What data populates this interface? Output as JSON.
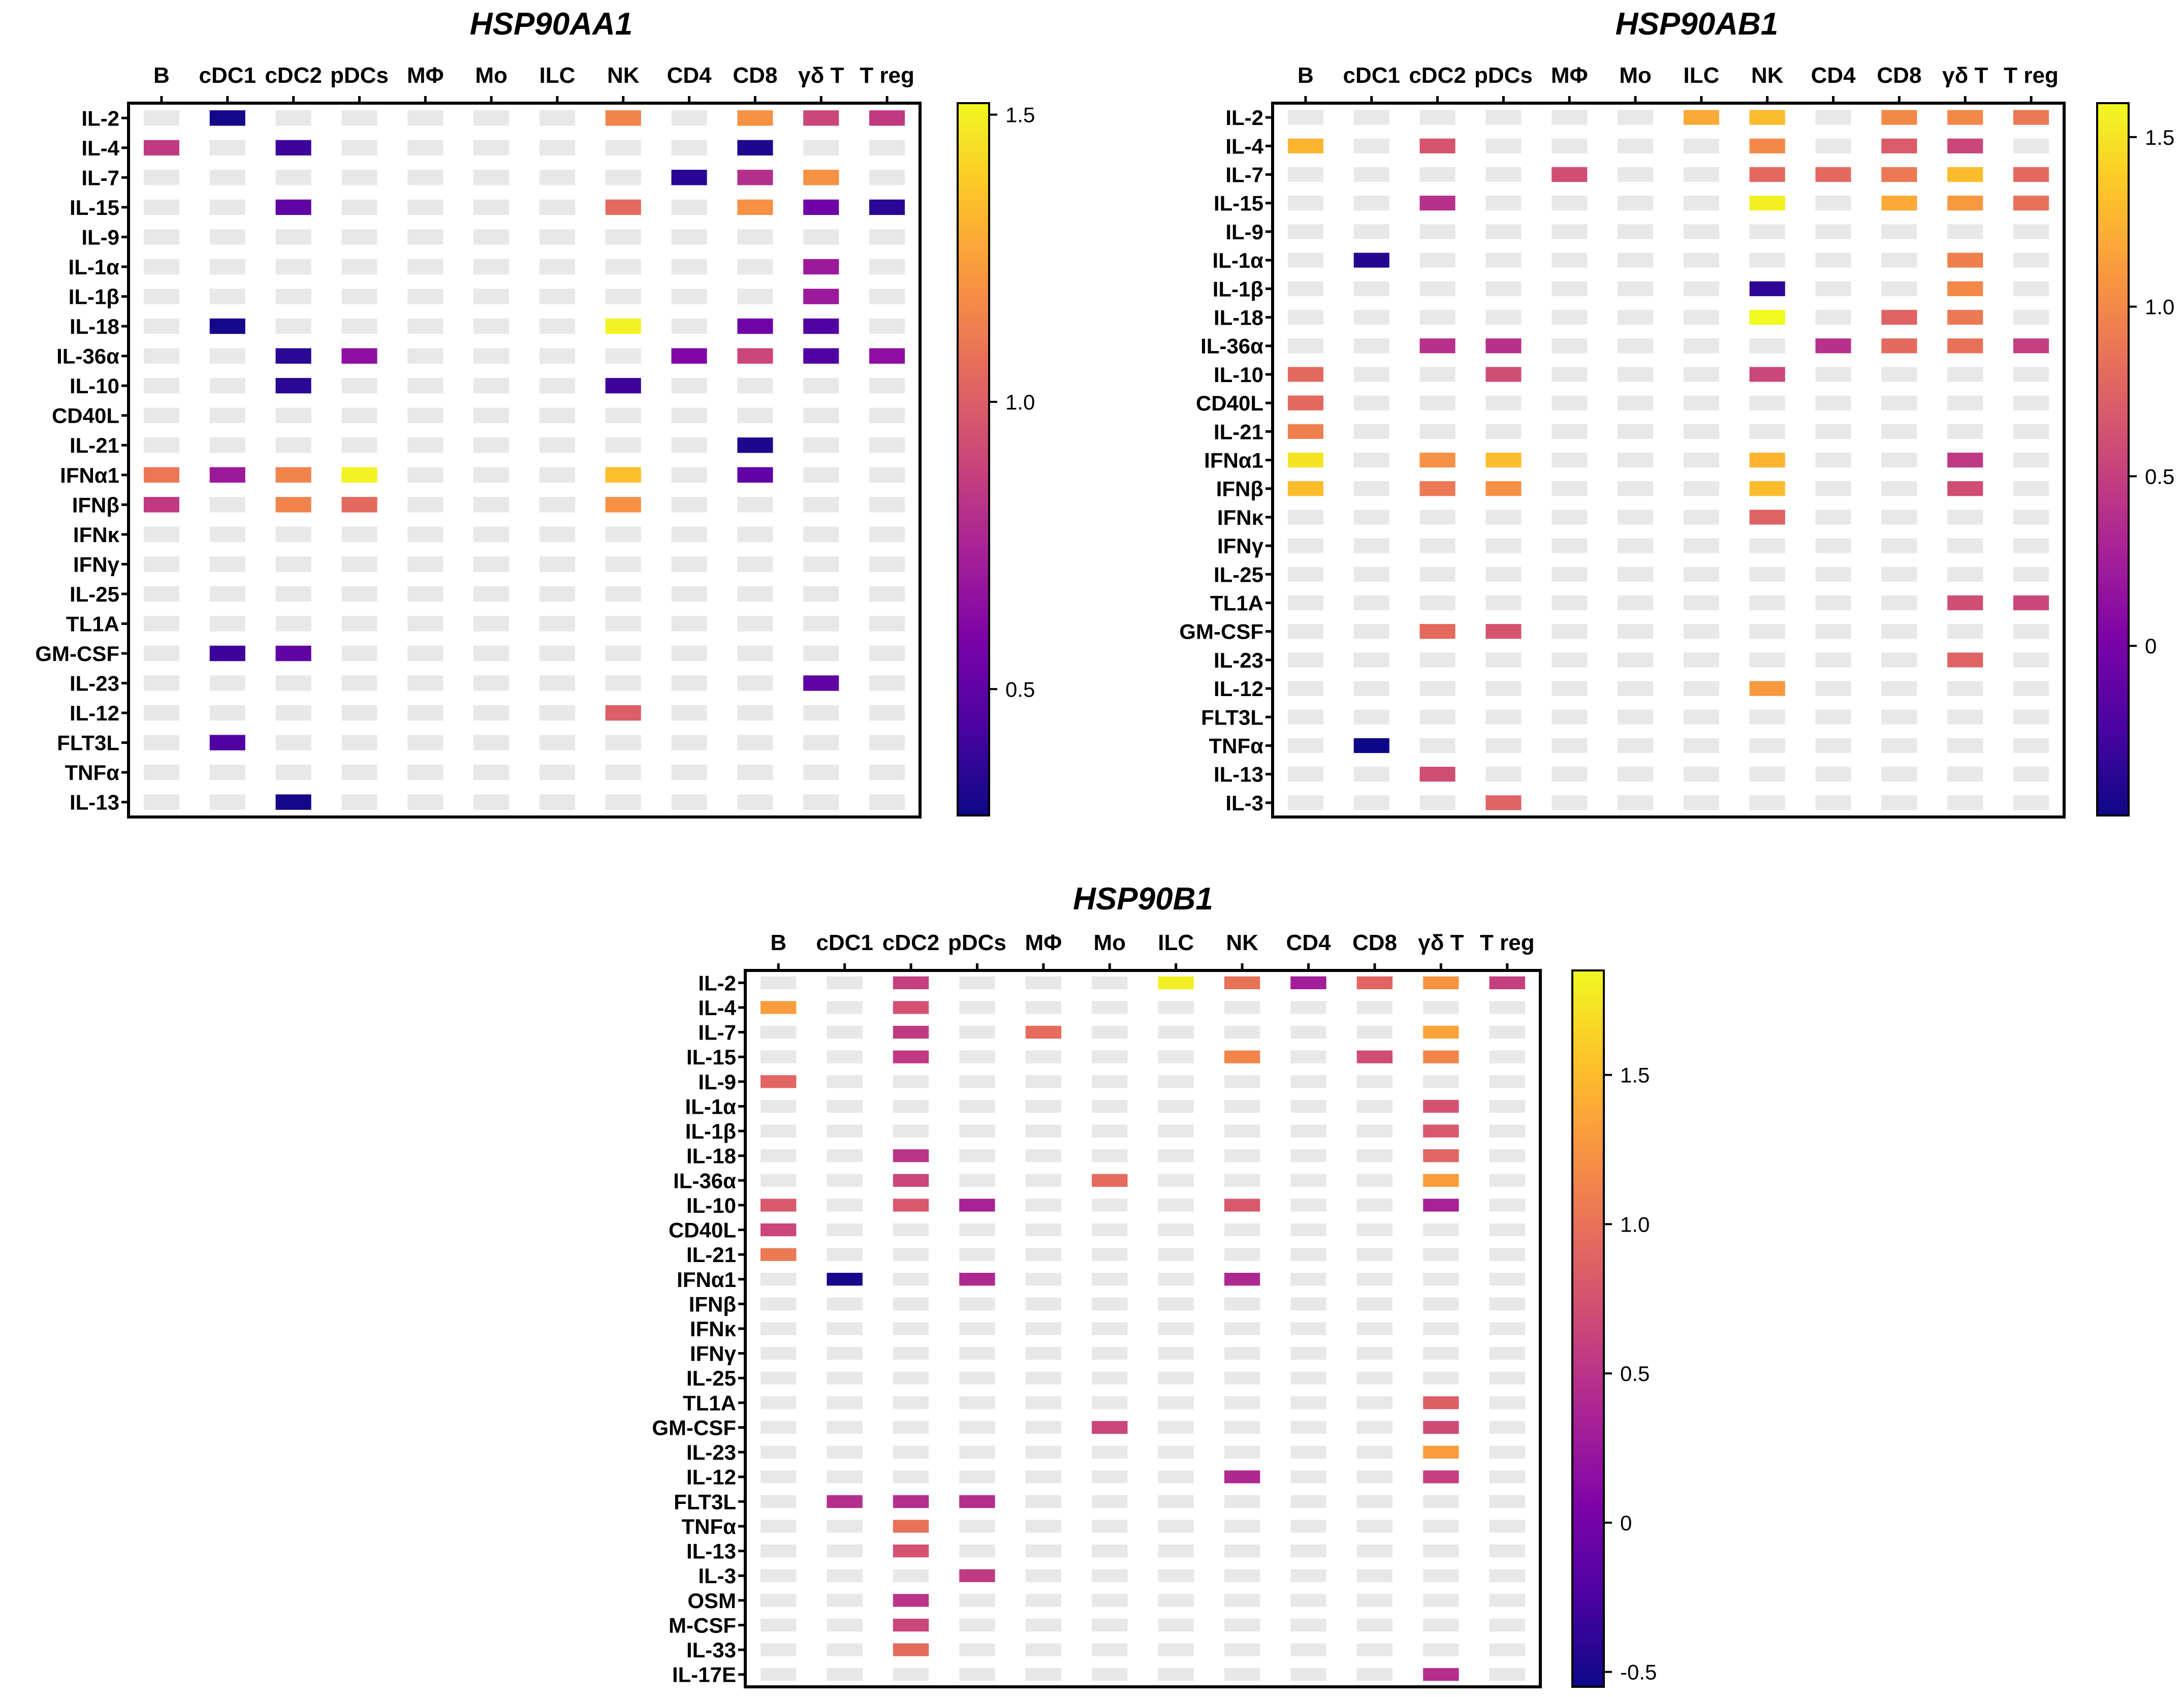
{
  "colors": {
    "missing": "#e8e8e8",
    "frame": "#000000",
    "colormap": "plasma"
  },
  "chart_data": [
    {
      "type": "heatmap",
      "title": "HSP90AA1",
      "cell_types": [
        "B",
        "cDC1",
        "cDC2",
        "pDCs",
        "MΦ",
        "Mo",
        "ILC",
        "NK",
        "CD4",
        "CD8",
        "γδ T",
        "T reg"
      ],
      "cytokines": [
        "IL-2",
        "IL-4",
        "IL-7",
        "IL-15",
        "IL-9",
        "IL-1α",
        "IL-1β",
        "IL-18",
        "IL-36α",
        "IL-10",
        "CD40L",
        "IL-21",
        "IFNα1",
        "IFNβ",
        "IFNκ",
        "IFNγ",
        "IL-25",
        "TL1A",
        "GM-CSF",
        "IL-23",
        "IL-12",
        "FLT3L",
        "TNFα",
        "IL-13"
      ],
      "colorbar": {
        "range": [
          0.28,
          1.52
        ],
        "ticks": [
          0.5,
          1.0,
          1.5
        ],
        "tick_labels": [
          "0.5",
          "1.0",
          "1.5"
        ]
      },
      "values": [
        [
          null,
          0.3,
          null,
          null,
          null,
          null,
          null,
          1.15,
          null,
          1.2,
          0.9,
          0.85
        ],
        [
          0.85,
          null,
          0.4,
          null,
          null,
          null,
          null,
          null,
          null,
          0.32,
          null,
          null
        ],
        [
          null,
          null,
          null,
          null,
          null,
          null,
          null,
          null,
          0.35,
          0.8,
          1.2,
          null
        ],
        [
          null,
          null,
          0.5,
          null,
          null,
          null,
          null,
          1.05,
          null,
          1.2,
          0.55,
          0.35
        ],
        [
          null,
          null,
          null,
          null,
          null,
          null,
          null,
          null,
          null,
          null,
          null,
          null
        ],
        [
          null,
          null,
          null,
          null,
          null,
          null,
          null,
          null,
          null,
          null,
          0.7,
          null
        ],
        [
          null,
          null,
          null,
          null,
          null,
          null,
          null,
          null,
          null,
          null,
          0.7,
          null
        ],
        [
          null,
          0.3,
          null,
          null,
          null,
          null,
          null,
          1.5,
          null,
          0.55,
          0.45,
          null
        ],
        [
          null,
          null,
          0.35,
          0.65,
          null,
          null,
          null,
          null,
          0.6,
          0.9,
          0.45,
          0.65
        ],
        [
          null,
          null,
          0.35,
          null,
          null,
          null,
          null,
          0.4,
          null,
          null,
          null,
          null
        ],
        [
          null,
          null,
          null,
          null,
          null,
          null,
          null,
          null,
          null,
          null,
          null,
          null
        ],
        [
          null,
          null,
          null,
          null,
          null,
          null,
          null,
          null,
          null,
          0.32,
          null,
          null
        ],
        [
          1.1,
          0.7,
          1.15,
          1.5,
          null,
          null,
          null,
          1.35,
          null,
          0.5,
          null,
          null
        ],
        [
          0.85,
          null,
          1.15,
          1.05,
          null,
          null,
          null,
          1.2,
          null,
          null,
          null,
          null
        ],
        [
          null,
          null,
          null,
          null,
          null,
          null,
          null,
          null,
          null,
          null,
          null,
          null
        ],
        [
          null,
          null,
          null,
          null,
          null,
          null,
          null,
          null,
          null,
          null,
          null,
          null
        ],
        [
          null,
          null,
          null,
          null,
          null,
          null,
          null,
          null,
          null,
          null,
          null,
          null
        ],
        [
          null,
          null,
          null,
          null,
          null,
          null,
          null,
          null,
          null,
          null,
          null,
          null
        ],
        [
          null,
          0.4,
          0.5,
          null,
          null,
          null,
          null,
          null,
          null,
          null,
          null,
          null
        ],
        [
          null,
          null,
          null,
          null,
          null,
          null,
          null,
          null,
          null,
          null,
          0.5,
          null
        ],
        [
          null,
          null,
          null,
          null,
          null,
          null,
          null,
          1.0,
          null,
          null,
          null,
          null
        ],
        [
          null,
          0.45,
          null,
          null,
          null,
          null,
          null,
          null,
          null,
          null,
          null,
          null
        ],
        [
          null,
          null,
          null,
          null,
          null,
          null,
          null,
          null,
          null,
          null,
          null,
          null
        ],
        [
          null,
          null,
          0.3,
          null,
          null,
          null,
          null,
          null,
          null,
          null,
          null,
          null
        ]
      ]
    },
    {
      "type": "heatmap",
      "title": "HSP90AB1",
      "cell_types": [
        "B",
        "cDC1",
        "cDC2",
        "pDCs",
        "MΦ",
        "Mo",
        "ILC",
        "NK",
        "CD4",
        "CD8",
        "γδ T",
        "T reg"
      ],
      "cytokines": [
        "IL-2",
        "IL-4",
        "IL-7",
        "IL-15",
        "IL-9",
        "IL-1α",
        "IL-1β",
        "IL-18",
        "IL-36α",
        "IL-10",
        "CD40L",
        "IL-21",
        "IFNα1",
        "IFNβ",
        "IFNκ",
        "IFNγ",
        "IL-25",
        "TL1A",
        "GM-CSF",
        "IL-23",
        "IL-12",
        "FLT3L",
        "TNFα",
        "IL-13",
        "IL-3"
      ],
      "colorbar": {
        "range": [
          -0.5,
          1.6
        ],
        "ticks": [
          0,
          0.5,
          1.0,
          1.5
        ],
        "tick_labels": [
          "0",
          "0.5",
          "1.0",
          "1.5"
        ]
      },
      "values": [
        [
          null,
          null,
          null,
          null,
          null,
          null,
          1.2,
          1.3,
          null,
          1.0,
          1.0,
          0.9
        ],
        [
          1.25,
          null,
          0.65,
          null,
          null,
          null,
          null,
          1.0,
          null,
          0.7,
          0.55,
          null
        ],
        [
          null,
          null,
          null,
          null,
          0.6,
          null,
          null,
          0.8,
          0.8,
          0.9,
          1.3,
          0.8
        ],
        [
          null,
          null,
          0.4,
          null,
          null,
          null,
          null,
          1.55,
          null,
          1.2,
          1.1,
          0.85
        ],
        [
          null,
          null,
          null,
          null,
          null,
          null,
          null,
          null,
          null,
          null,
          null,
          null
        ],
        [
          null,
          -0.4,
          null,
          null,
          null,
          null,
          null,
          null,
          null,
          null,
          0.95,
          null
        ],
        [
          null,
          null,
          null,
          null,
          null,
          null,
          null,
          -0.35,
          null,
          null,
          1.0,
          null
        ],
        [
          null,
          null,
          null,
          null,
          null,
          null,
          null,
          1.6,
          null,
          0.75,
          0.9,
          null
        ],
        [
          null,
          null,
          0.4,
          0.4,
          null,
          null,
          null,
          null,
          0.4,
          0.8,
          0.85,
          0.5
        ],
        [
          0.8,
          null,
          null,
          0.6,
          null,
          null,
          null,
          0.55,
          null,
          null,
          null,
          null
        ],
        [
          0.8,
          null,
          null,
          null,
          null,
          null,
          null,
          null,
          null,
          null,
          null,
          null
        ],
        [
          0.95,
          null,
          null,
          null,
          null,
          null,
          null,
          null,
          null,
          null,
          null,
          null
        ],
        [
          1.5,
          null,
          1.05,
          1.3,
          null,
          null,
          null,
          1.25,
          null,
          null,
          0.45,
          null
        ],
        [
          1.3,
          null,
          0.9,
          1.05,
          null,
          null,
          null,
          1.3,
          null,
          null,
          0.6,
          null
        ],
        [
          null,
          null,
          null,
          null,
          null,
          null,
          null,
          0.75,
          null,
          null,
          null,
          null
        ],
        [
          null,
          null,
          null,
          null,
          null,
          null,
          null,
          null,
          null,
          null,
          null,
          null
        ],
        [
          null,
          null,
          null,
          null,
          null,
          null,
          null,
          null,
          null,
          null,
          null,
          null
        ],
        [
          null,
          null,
          null,
          null,
          null,
          null,
          null,
          null,
          null,
          null,
          0.6,
          0.55
        ],
        [
          null,
          null,
          0.8,
          0.65,
          null,
          null,
          null,
          null,
          null,
          null,
          null,
          null
        ],
        [
          null,
          null,
          null,
          null,
          null,
          null,
          null,
          null,
          null,
          null,
          0.75,
          null
        ],
        [
          null,
          null,
          null,
          null,
          null,
          null,
          null,
          1.1,
          null,
          null,
          null,
          null
        ],
        [
          null,
          null,
          null,
          null,
          null,
          null,
          null,
          null,
          null,
          null,
          null,
          null
        ],
        [
          null,
          -0.5,
          null,
          null,
          null,
          null,
          null,
          null,
          null,
          null,
          null,
          null
        ],
        [
          null,
          null,
          0.6,
          null,
          null,
          null,
          null,
          null,
          null,
          null,
          null,
          null
        ],
        [
          null,
          null,
          null,
          0.75,
          null,
          null,
          null,
          null,
          null,
          null,
          null,
          null
        ]
      ]
    },
    {
      "type": "heatmap",
      "title": "HSP90B1",
      "cell_types": [
        "B",
        "cDC1",
        "cDC2",
        "pDCs",
        "MΦ",
        "Mo",
        "ILC",
        "NK",
        "CD4",
        "CD8",
        "γδ T",
        "T reg"
      ],
      "cytokines": [
        "IL-2",
        "IL-4",
        "IL-7",
        "IL-15",
        "IL-9",
        "IL-1α",
        "IL-1β",
        "IL-18",
        "IL-36α",
        "IL-10",
        "CD40L",
        "IL-21",
        "IFNα1",
        "IFNβ",
        "IFNκ",
        "IFNγ",
        "IL-25",
        "TL1A",
        "GM-CSF",
        "IL-23",
        "IL-12",
        "FLT3L",
        "TNFα",
        "IL-13",
        "IL-3",
        "OSM",
        "M-CSF",
        "IL-33",
        "IL-17E"
      ],
      "colorbar": {
        "range": [
          -0.55,
          1.85
        ],
        "ticks": [
          -0.5,
          0,
          0.5,
          1.0,
          1.5
        ],
        "tick_labels": [
          "-0.5",
          "0",
          "0.5",
          "1.0",
          "1.5"
        ]
      },
      "values": [
        [
          null,
          null,
          0.6,
          null,
          null,
          null,
          1.8,
          1.0,
          0.3,
          0.9,
          1.25,
          0.6
        ],
        [
          1.3,
          null,
          0.75,
          null,
          null,
          null,
          null,
          null,
          null,
          null,
          null,
          null
        ],
        [
          null,
          null,
          0.55,
          null,
          0.95,
          null,
          null,
          null,
          null,
          null,
          1.35,
          null
        ],
        [
          null,
          null,
          0.55,
          null,
          null,
          null,
          null,
          1.15,
          null,
          0.7,
          1.15,
          null
        ],
        [
          0.9,
          null,
          null,
          null,
          null,
          null,
          null,
          null,
          null,
          null,
          null,
          null
        ],
        [
          null,
          null,
          null,
          null,
          null,
          null,
          null,
          null,
          null,
          null,
          0.75,
          null
        ],
        [
          null,
          null,
          null,
          null,
          null,
          null,
          null,
          null,
          null,
          null,
          0.8,
          null
        ],
        [
          null,
          null,
          0.5,
          null,
          null,
          null,
          null,
          null,
          null,
          null,
          0.9,
          null
        ],
        [
          null,
          null,
          0.65,
          null,
          null,
          0.95,
          null,
          null,
          null,
          null,
          1.3,
          null
        ],
        [
          0.8,
          null,
          0.8,
          0.35,
          null,
          null,
          null,
          0.8,
          null,
          null,
          0.35,
          null
        ],
        [
          0.65,
          null,
          null,
          null,
          null,
          null,
          null,
          null,
          null,
          null,
          null,
          null
        ],
        [
          1.05,
          null,
          null,
          null,
          null,
          null,
          null,
          null,
          null,
          null,
          null,
          null
        ],
        [
          null,
          -0.5,
          null,
          0.4,
          null,
          null,
          null,
          0.4,
          null,
          null,
          null,
          null
        ],
        [
          null,
          null,
          null,
          null,
          null,
          null,
          null,
          null,
          null,
          null,
          null,
          null
        ],
        [
          null,
          null,
          null,
          null,
          null,
          null,
          null,
          null,
          null,
          null,
          null,
          null
        ],
        [
          null,
          null,
          null,
          null,
          null,
          null,
          null,
          null,
          null,
          null,
          null,
          null
        ],
        [
          null,
          null,
          null,
          null,
          null,
          null,
          null,
          null,
          null,
          null,
          null,
          null
        ],
        [
          null,
          null,
          null,
          null,
          null,
          null,
          null,
          null,
          null,
          null,
          0.85,
          null
        ],
        [
          null,
          null,
          null,
          null,
          null,
          0.65,
          null,
          null,
          null,
          null,
          0.7,
          null
        ],
        [
          null,
          null,
          null,
          null,
          null,
          null,
          null,
          null,
          null,
          null,
          1.3,
          null
        ],
        [
          null,
          null,
          null,
          null,
          null,
          null,
          null,
          0.4,
          null,
          null,
          0.6,
          null
        ],
        [
          null,
          0.45,
          0.45,
          0.45,
          null,
          null,
          null,
          null,
          null,
          null,
          null,
          null
        ],
        [
          null,
          null,
          1.0,
          null,
          null,
          null,
          null,
          null,
          null,
          null,
          null,
          null
        ],
        [
          null,
          null,
          0.75,
          null,
          null,
          null,
          null,
          null,
          null,
          null,
          null,
          null
        ],
        [
          null,
          null,
          null,
          0.55,
          null,
          null,
          null,
          null,
          null,
          null,
          null,
          null
        ],
        [
          null,
          null,
          0.5,
          null,
          null,
          null,
          null,
          null,
          null,
          null,
          null,
          null
        ],
        [
          null,
          null,
          0.65,
          null,
          null,
          null,
          null,
          null,
          null,
          null,
          null,
          null
        ],
        [
          null,
          null,
          0.95,
          null,
          null,
          null,
          null,
          null,
          null,
          null,
          null,
          null
        ],
        [
          null,
          null,
          null,
          null,
          null,
          null,
          null,
          null,
          null,
          null,
          0.45,
          null
        ]
      ]
    }
  ]
}
